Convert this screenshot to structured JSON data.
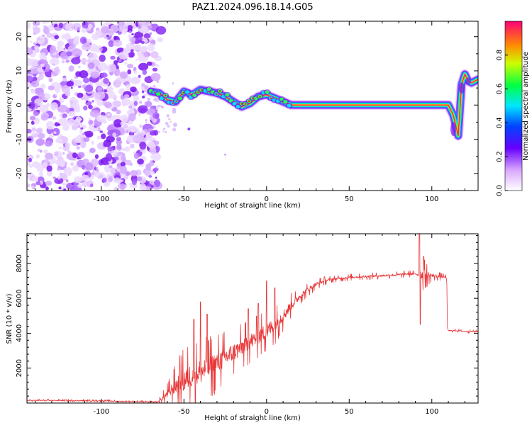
{
  "title": "PAZ1.2024.096.18.14.G05",
  "chart_data": [
    {
      "type": "heatmap",
      "xlabel": "Height of straight line (km)",
      "ylabel": "Frequency (Hz)",
      "xlim": [
        -145,
        128
      ],
      "ylim": [
        -25,
        24.5
      ],
      "xticks": [
        -100,
        -50,
        0,
        50,
        100
      ],
      "yticks": [
        -20,
        -10,
        0,
        10,
        20
      ],
      "colorbar": {
        "label": "Normalized spectral amplitude",
        "range": [
          0,
          1
        ],
        "ticks": [
          0.0,
          0.2,
          0.4,
          0.6,
          0.8
        ]
      },
      "noise_region_x": [
        -145,
        -66
      ],
      "ridge": {
        "x": [
          -70,
          -65,
          -60,
          -55,
          -50,
          -45,
          -40,
          -35,
          -30,
          -25,
          -20,
          -15,
          -10,
          -5,
          0,
          5,
          10,
          15,
          20,
          30,
          40,
          50,
          60,
          70,
          80,
          90,
          95,
          100,
          105,
          110,
          113,
          116,
          118,
          120,
          122,
          124,
          126,
          128
        ],
        "y": [
          4,
          3.5,
          1.5,
          1,
          4,
          3,
          4.5,
          4,
          3.5,
          2.5,
          1,
          -0.5,
          0.5,
          2.5,
          3,
          2,
          1,
          0,
          0,
          0,
          0,
          0,
          0,
          0,
          0,
          0,
          0,
          0,
          0,
          0,
          -3,
          -9,
          6,
          9,
          7,
          6.5,
          7,
          7.5
        ]
      }
    },
    {
      "type": "line",
      "xlabel": "Height of straight line (km)",
      "ylabel": "SNR (10 * v/v)",
      "xlim": [
        -145,
        128
      ],
      "ylim": [
        0,
        9700
      ],
      "xticks": [
        -100,
        -50,
        0,
        50,
        100
      ],
      "yticks": [
        2000,
        4000,
        6000,
        8000
      ],
      "color": "#e8383a",
      "series_trend": {
        "x": [
          -145,
          -120,
          -100,
          -80,
          -66,
          -62,
          -58,
          -55,
          -50,
          -45,
          -40,
          -35,
          -30,
          -25,
          -20,
          -15,
          -10,
          -5,
          0,
          5,
          10,
          15,
          20,
          25,
          30,
          35,
          40,
          50,
          60,
          70,
          80,
          85,
          90,
          95,
          100,
          105,
          109,
          109.5,
          115,
          120,
          128
        ],
        "y": [
          150,
          150,
          130,
          80,
          60,
          350,
          700,
          1000,
          1300,
          1600,
          1800,
          2000,
          2300,
          2600,
          2900,
          3200,
          3500,
          3800,
          4100,
          4500,
          5000,
          5600,
          6100,
          6500,
          6800,
          7000,
          7100,
          7200,
          7250,
          7300,
          7350,
          7400,
          7400,
          7350,
          7300,
          7250,
          7200,
          4150,
          4150,
          4100,
          4100
        ]
      },
      "noise_amplitude": {
        "x": [
          -145,
          -66,
          -60,
          -50,
          -40,
          -30,
          -20,
          -10,
          0,
          10,
          20,
          30,
          40,
          90,
          95,
          100,
          109,
          110,
          128
        ],
        "y": [
          40,
          40,
          400,
          1200,
          1200,
          1100,
          900,
          800,
          800,
          600,
          300,
          200,
          120,
          120,
          600,
          200,
          100,
          60,
          60
        ]
      },
      "spikes": [
        {
          "x": -44,
          "y": 4800
        },
        {
          "x": -40,
          "y": 5800
        },
        {
          "x": -36,
          "y": 5100
        },
        {
          "x": -11,
          "y": 5400
        },
        {
          "x": -5,
          "y": 5700
        },
        {
          "x": 0,
          "y": 7000
        },
        {
          "x": 5,
          "y": 6600
        },
        {
          "x": 92.5,
          "y": 9700
        },
        {
          "x": 93,
          "y": 4500
        },
        {
          "x": 95,
          "y": 8400
        }
      ]
    }
  ]
}
